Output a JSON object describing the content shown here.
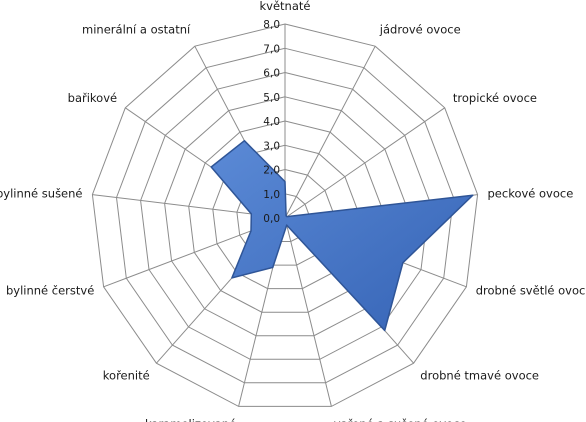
{
  "chart_data": {
    "type": "radar",
    "categories": [
      "květnaté",
      "jádrové ovoce",
      "tropické ovoce",
      "peckové ovoce",
      "drobné světlé ovoce",
      "drobné tmavé ovoce",
      "vařené a sušené ovoce",
      "karamelizované",
      "kořenité",
      "bylinné čerstvé",
      "bylinné sušené",
      "bařikové",
      "minerální a ostatní"
    ],
    "series": [
      {
        "values": [
          1.5,
          0.1,
          0.1,
          7.8,
          5.2,
          6.2,
          0.3,
          2.1,
          3.3,
          1.5,
          1.4,
          3.7,
          3.6
        ],
        "color": "#4472C4"
      }
    ],
    "ticks": [
      "0,0",
      "1,0",
      "2,0",
      "3,0",
      "4,0",
      "5,0",
      "6,0",
      "7,0",
      "8,0"
    ],
    "rmin": 0,
    "rmax": 8,
    "grid": true
  }
}
